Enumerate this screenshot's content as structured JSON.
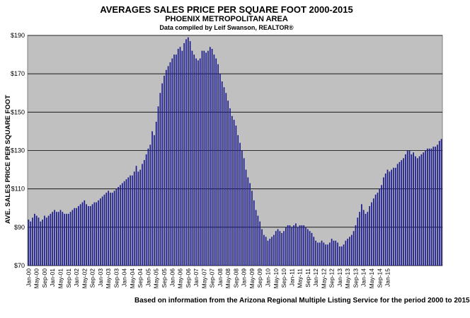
{
  "chart_data": {
    "type": "bar",
    "title": "AVERAGES SALES PRICE PER SQUARE FOOT 2000-2015",
    "subtitle": "PHOENIX METROPOLITAN AREA",
    "credit": "Data compiled by Leif Swanson, REALTOR®",
    "ylabel": "AVE. SALES PRICE PER SQUARE FOOT",
    "footnote": "Based on information from the Arizona Regional Multiple Listing Service for the period 2000 to 2015",
    "ylim": [
      70,
      190
    ],
    "yticks": [
      "$70",
      "$90",
      "$110",
      "$130",
      "$150",
      "$170",
      "$190"
    ],
    "ytick_values": [
      70,
      90,
      110,
      130,
      150,
      170,
      190
    ],
    "grid": true,
    "bar_color": "#1a1a8c",
    "plot_bg": "#c0c0c0",
    "start": "Jan-00",
    "xtick_labels": [
      "Jan-00",
      "May-00",
      "Sep-00",
      "Jan-01",
      "May-01",
      "Sep-01",
      "Jan-02",
      "May-02",
      "Sep-02",
      "Jan-03",
      "May-03",
      "Sep-03",
      "Jan-04",
      "May-04",
      "Sep-04",
      "Jan-05",
      "May-05",
      "Sep-05",
      "Jan-06",
      "May-06",
      "Sep-06",
      "Jan-07",
      "May-07",
      "Sep-07",
      "Jan-08",
      "May-08",
      "Sep-08",
      "Jan-09",
      "May-09",
      "Sep-09",
      "Jan-10",
      "May-10",
      "Sep-10",
      "Jan-11",
      "May-11",
      "Sep-11",
      "Jan-12",
      "May-12",
      "Sep-12",
      "Jan-13",
      "May-13",
      "Sep-13",
      "Jan-14",
      "May-14",
      "Sep-14",
      "Jan-15"
    ],
    "values": [
      94,
      93,
      95,
      97,
      96,
      95,
      93,
      94,
      96,
      95,
      96,
      97,
      98,
      99,
      98,
      98,
      99,
      98,
      97,
      97,
      97,
      98,
      99,
      100,
      100,
      101,
      102,
      103,
      104,
      102,
      101,
      101,
      102,
      103,
      103,
      104,
      105,
      106,
      107,
      108,
      109,
      108,
      108,
      109,
      110,
      111,
      112,
      113,
      114,
      115,
      116,
      117,
      117,
      119,
      122,
      119,
      120,
      123,
      125,
      128,
      131,
      133,
      140,
      138,
      145,
      153,
      160,
      165,
      169,
      172,
      174,
      176,
      178,
      180,
      180,
      183,
      184,
      182,
      186,
      188,
      189,
      187,
      182,
      180,
      178,
      177,
      178,
      182,
      182,
      181,
      182,
      184,
      183,
      180,
      178,
      175,
      170,
      166,
      163,
      160,
      156,
      152,
      148,
      146,
      143,
      138,
      134,
      130,
      126,
      120,
      116,
      113,
      109,
      104,
      99,
      96,
      93,
      89,
      86,
      85,
      83,
      84,
      85,
      86,
      88,
      89,
      88,
      87,
      88,
      90,
      91,
      91,
      90,
      91,
      92,
      90,
      91,
      91,
      91,
      90,
      89,
      88,
      87,
      85,
      83,
      82,
      82,
      83,
      82,
      81,
      81,
      82,
      84,
      83,
      83,
      82,
      80,
      80,
      81,
      83,
      84,
      85,
      86,
      88,
      91,
      95,
      98,
      102,
      99,
      97,
      98,
      101,
      103,
      105,
      107,
      108,
      110,
      112,
      116,
      118,
      120,
      119,
      120,
      121,
      121,
      123,
      124,
      125,
      126,
      128,
      130,
      130,
      128,
      129,
      127,
      126,
      127,
      128,
      129,
      130,
      131,
      131,
      131,
      132,
      132,
      133,
      135,
      136
    ]
  }
}
